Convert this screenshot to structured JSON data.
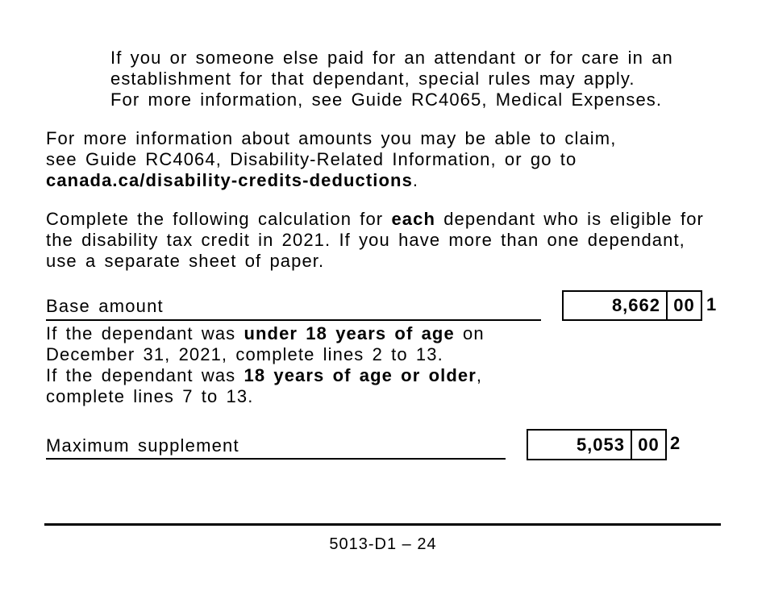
{
  "colors": {
    "text": "#000000",
    "background": "#ffffff",
    "border": "#000000"
  },
  "attendant_note": {
    "line1": "If you or someone else paid for an attendant or for care in an",
    "line2": "establishment for that dependant, special rules may apply.",
    "line3": "For more information, see Guide RC4065, Medical Expenses."
  },
  "more_info": {
    "line1": "For more information about amounts you may be able to claim,",
    "line2": "see Guide RC4064, Disability-Related Information, or go to",
    "link_bold": "canada.ca/disability-credits-deductions",
    "after_link": "."
  },
  "calc_instructions": {
    "line1_pre": "Complete the following calculation for ",
    "line1_bold": "each",
    "line1_post": " dependant who is eligible for",
    "line2": "the disability tax credit in 2021. If you have more than one dependant,",
    "line3": "use a separate sheet of paper."
  },
  "base_amount_row": {
    "label": "Base amount",
    "amount": "8,662",
    "cents": "00",
    "line_number": "1"
  },
  "age_note": {
    "line1_pre": "If the dependant was ",
    "line1_bold": "under 18 years of age",
    "line1_post": " on",
    "line2": "December 31, 2021, complete lines 2 to 13.",
    "line3_pre": "If the dependant was ",
    "line3_bold": "18 years of age or older",
    "line3_post": ",",
    "line4": "complete lines 7 to 13."
  },
  "max_supplement_row": {
    "label": "Maximum supplement",
    "amount": "5,053",
    "cents": "00",
    "line_number": "2"
  },
  "footer": "5013-D1 – 24"
}
